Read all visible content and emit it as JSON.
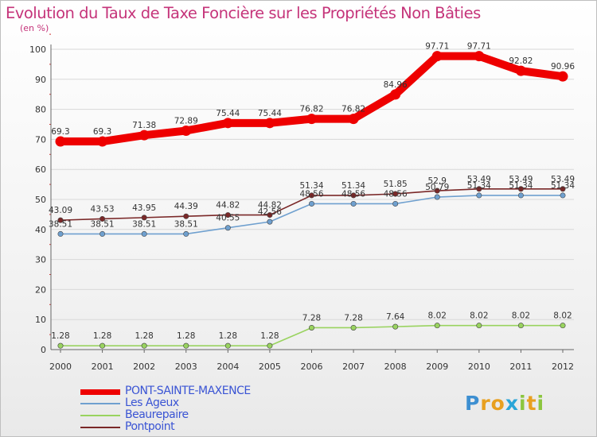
{
  "chart_data": {
    "type": "line",
    "title": "Evolution du Taux de Taxe Foncière sur les Propriétés Non Bâties",
    "subtitle": "(en %)",
    "xlabel": "",
    "ylabel": "",
    "ylim": [
      0,
      100
    ],
    "yticks": [
      "0",
      "10",
      "20",
      "30",
      "40",
      "50",
      "60",
      "70",
      "80",
      "90",
      "100"
    ],
    "categories": [
      "2000",
      "2001",
      "2002",
      "2003",
      "2004",
      "2005",
      "2006",
      "2007",
      "2008",
      "2009",
      "2010",
      "2011",
      "2012"
    ],
    "grid": true,
    "legend_position": "bottom-left",
    "series": [
      {
        "name": "PONT-SAINTE-MAXENCE",
        "color": "#ee0000",
        "values": [
          69.3,
          69.3,
          71.38,
          72.89,
          75.44,
          75.44,
          76.82,
          76.82,
          84.96,
          97.71,
          97.71,
          92.82,
          90.96
        ],
        "labels": [
          "69.3",
          "69.3",
          "71.38",
          "72.89",
          "75.44",
          "75.44",
          "76.82",
          "76.82",
          "84.96",
          "97.71",
          "97.71",
          "92.82",
          "90.96"
        ]
      },
      {
        "name": "Les Ageux",
        "color": "#6fa0cf",
        "values": [
          38.51,
          38.51,
          38.51,
          38.51,
          40.55,
          42.56,
          48.56,
          48.56,
          48.56,
          50.79,
          51.34,
          51.34,
          51.34
        ],
        "labels": [
          "38.51",
          "38.51",
          "38.51",
          "38.51",
          "40.55",
          "42.56",
          "48.56",
          "48.56",
          "48.56",
          "50.79",
          "51.34",
          "51.34",
          "51.34"
        ]
      },
      {
        "name": "Beaurepaire",
        "color": "#99d35f",
        "values": [
          1.28,
          1.28,
          1.28,
          1.28,
          1.28,
          1.28,
          7.28,
          7.28,
          7.64,
          8.02,
          8.02,
          8.02,
          8.02
        ],
        "labels": [
          "1.28",
          "1.28",
          "1.28",
          "1.28",
          "1.28",
          "1.28",
          "7.28",
          "7.28",
          "7.64",
          "8.02",
          "8.02",
          "8.02",
          "8.02"
        ]
      },
      {
        "name": "Pontpoint",
        "color": "#7a2828",
        "values": [
          43.09,
          43.53,
          43.95,
          44.39,
          44.82,
          44.82,
          51.34,
          51.34,
          51.85,
          52.9,
          53.49,
          53.49,
          53.49
        ],
        "labels": [
          "43.09",
          "43.53",
          "43.95",
          "44.39",
          "44.82",
          "44.82",
          "51.34",
          "51.34",
          "51.85",
          "52.9",
          "53.49",
          "53.49",
          "53.49"
        ]
      }
    ]
  },
  "logo": {
    "text": "Proxiti"
  }
}
